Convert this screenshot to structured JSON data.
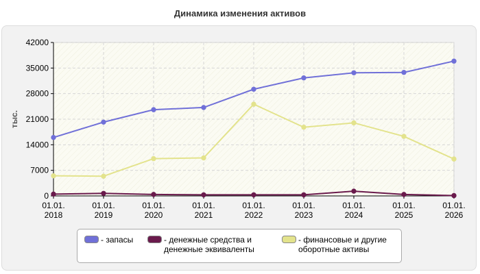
{
  "chart_data": {
    "type": "line",
    "title": "Динамика изменения активов",
    "ylabel": "тыс.",
    "xlabel": "",
    "ylim": [
      0,
      42000
    ],
    "yticks": [
      0,
      7000,
      14000,
      21000,
      28000,
      35000,
      42000
    ],
    "categories": [
      [
        "01.01.",
        "2018"
      ],
      [
        "01.01.",
        "2019"
      ],
      [
        "01.01.",
        "2020"
      ],
      [
        "01.01.",
        "2021"
      ],
      [
        "01.01.",
        "2022"
      ],
      [
        "01.01.",
        "2023"
      ],
      [
        "01.01.",
        "2024"
      ],
      [
        "01.01.",
        "2025"
      ],
      [
        "01.01.",
        "2026"
      ]
    ],
    "grid": true,
    "legend_position": "bottom",
    "series": [
      {
        "name": "- запасы",
        "color": "#7070d8",
        "values": [
          16000,
          20200,
          23600,
          24200,
          29200,
          32300,
          33700,
          33800,
          36900
        ]
      },
      {
        "name": "- денежные средства и денежные эквиваленты",
        "legend_lines": [
          "- денежные средства и",
          "денежные эквиваленты"
        ],
        "color": "#6a1a4c",
        "values": [
          500,
          700,
          400,
          300,
          300,
          300,
          1300,
          400,
          100
        ]
      },
      {
        "name": "- финансовые и другие оборотные активы",
        "legend_lines": [
          "- финансовые и другие",
          "оборотные активы"
        ],
        "color": "#e3e38c",
        "values": [
          5500,
          5400,
          10200,
          10400,
          25100,
          18800,
          20000,
          16300,
          10100
        ]
      }
    ]
  }
}
